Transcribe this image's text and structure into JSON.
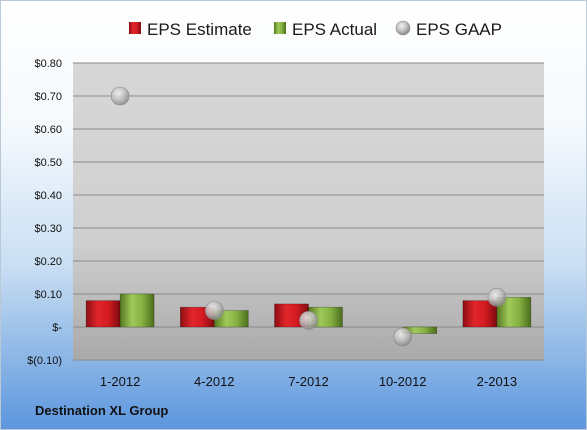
{
  "chart_data": {
    "type": "bar",
    "categories": [
      "1-2012",
      "4-2012",
      "7-2012",
      "10-2012",
      "2-2013"
    ],
    "series": [
      {
        "name": "EPS Estimate",
        "kind": "bar",
        "color": "#c0151b",
        "values": [
          0.08,
          0.06,
          0.07,
          null,
          0.08
        ]
      },
      {
        "name": "EPS Actual",
        "kind": "bar",
        "color": "#7aa33a",
        "values": [
          0.1,
          0.05,
          0.06,
          -0.02,
          0.09
        ]
      },
      {
        "name": "EPS GAAP",
        "kind": "scatter",
        "color": "#a9a9a9",
        "values": [
          0.7,
          0.05,
          0.02,
          -0.03,
          0.09
        ]
      }
    ],
    "ylim": [
      -0.1,
      0.8
    ],
    "yticks": [
      -0.1,
      0,
      0.1,
      0.2,
      0.3,
      0.4,
      0.5,
      0.6,
      0.7,
      0.8
    ],
    "ytick_labels": [
      "$(0.10)",
      "$-",
      "$0.10",
      "$0.20",
      "$0.30",
      "$0.40",
      "$0.50",
      "$0.60",
      "$0.70",
      "$0.80"
    ],
    "grid": true,
    "legend": "top",
    "xlabel": "",
    "ylabel": ""
  },
  "footer": {
    "company": "Destination XL Group"
  }
}
